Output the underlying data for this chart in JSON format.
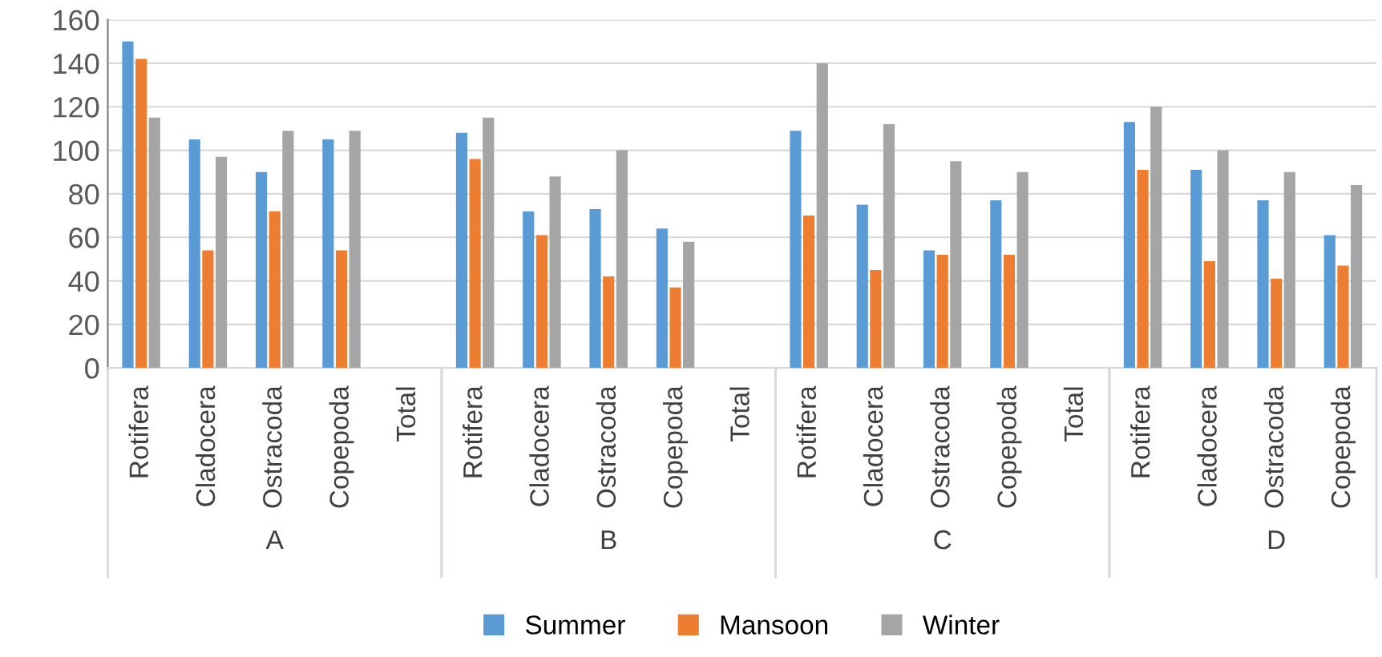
{
  "chart_data": {
    "type": "bar",
    "categories": [
      "Rotifera",
      "Cladocera",
      "Ostracoda",
      "Copepoda",
      "Total",
      "Rotifera",
      "Cladocera",
      "Ostracoda",
      "Copepoda",
      "Total",
      "Rotifera",
      "Cladocera",
      "Ostracoda",
      "Copepoda",
      "Total",
      "Rotifera",
      "Cladocera",
      "Ostracoda",
      "Copepoda"
    ],
    "series": [
      {
        "name": "Summer",
        "color": "#5b9bd5",
        "values": [
          150,
          105,
          90,
          105,
          null,
          108,
          72,
          73,
          64,
          null,
          109,
          75,
          54,
          77,
          null,
          113,
          91,
          77,
          61
        ]
      },
      {
        "name": "Mansoon",
        "color": "#ed7d31",
        "values": [
          142,
          54,
          72,
          54,
          null,
          96,
          61,
          42,
          37,
          null,
          70,
          45,
          52,
          52,
          null,
          91,
          49,
          41,
          47
        ]
      },
      {
        "name": "Winter",
        "color": "#a5a5a5",
        "values": [
          115,
          97,
          109,
          109,
          null,
          115,
          88,
          100,
          58,
          null,
          140,
          112,
          95,
          90,
          null,
          120,
          100,
          90,
          84
        ]
      }
    ],
    "annotations": [
      "A",
      "B",
      "C",
      "D"
    ],
    "ylim": [
      0,
      160
    ],
    "yticks": [
      0,
      20,
      40,
      60,
      80,
      100,
      120,
      140,
      160
    ],
    "grid": "y",
    "legend": "bottom"
  }
}
